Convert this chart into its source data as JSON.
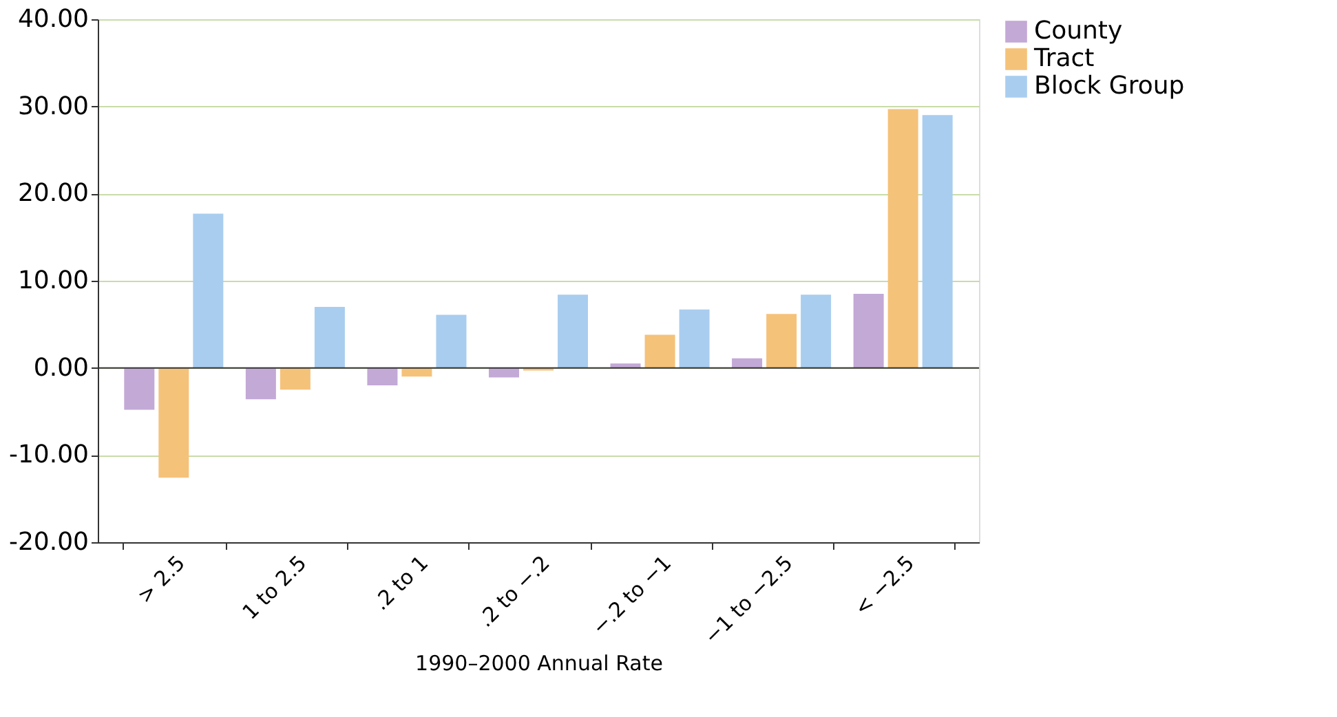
{
  "chart_data": {
    "type": "bar",
    "xlabel": "1990–2000 Annual Rate",
    "categories": [
      "> 2.5",
      "1 to 2.5",
      ".2 to 1",
      ".2 to −.2",
      "−.2 to −1",
      "−1 to −2.5",
      "< −2.5"
    ],
    "series": [
      {
        "name": "County",
        "color": "#c3a9d6",
        "values": [
          -4.8,
          -3.6,
          -2.0,
          -1.1,
          0.5,
          1.1,
          8.5
        ]
      },
      {
        "name": "Tract",
        "color": "#f5c27a",
        "values": [
          -12.6,
          -2.5,
          -1.0,
          -0.3,
          3.8,
          6.2,
          29.7
        ]
      },
      {
        "name": "Block Group",
        "color": "#a9cdef",
        "values": [
          17.7,
          7.0,
          6.1,
          8.4,
          6.7,
          8.4,
          29.0
        ]
      }
    ],
    "ylim": [
      -20,
      40
    ],
    "yticks": [
      {
        "value": -20,
        "label": "-20.00"
      },
      {
        "value": -10,
        "label": "-10.00"
      },
      {
        "value": 0,
        "label": "0.00"
      },
      {
        "value": 10,
        "label": "10.00"
      },
      {
        "value": 20,
        "label": "20.00"
      },
      {
        "value": 30,
        "label": "30.00"
      },
      {
        "value": 40,
        "label": "40.00"
      }
    ],
    "grid": "y",
    "legend": "right"
  }
}
